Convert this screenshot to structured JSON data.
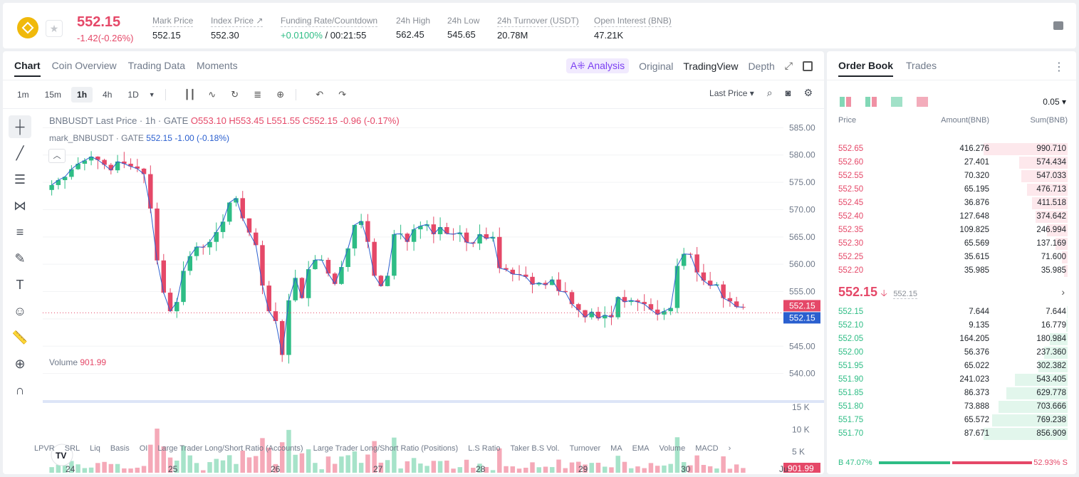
{
  "header": {
    "last_price": "552.15",
    "change": "-1.42(-0.26%)",
    "stats": [
      {
        "label": "Mark Price",
        "value": "552.15"
      },
      {
        "label": "Index Price ↗",
        "value": "552.30"
      },
      {
        "label": "Funding Rate/Countdown",
        "value_green": "+0.0100%",
        "value_rest": " / 00:21:55"
      },
      {
        "label": "24h High",
        "value": "562.45"
      },
      {
        "label": "24h Low",
        "value": "545.65"
      },
      {
        "label": "24h Turnover (USDT)",
        "value": "20.78M"
      },
      {
        "label": "Open Interest (BNB)",
        "value": "47.21K"
      }
    ]
  },
  "chart_tabs": [
    "Chart",
    "Coin Overview",
    "Trading Data",
    "Moments"
  ],
  "view_tabs": {
    "analysis": "A⁜ Analysis",
    "original": "Original",
    "tradingview": "TradingView",
    "depth": "Depth"
  },
  "intervals": [
    "1m",
    "15m",
    "1h",
    "4h",
    "1D"
  ],
  "active_interval": "1h",
  "price_type": "Last Price",
  "legend": {
    "main": "BNBUSDT Last Price · 1h · GATE",
    "o": "O553.10",
    "h": "H553.45",
    "l": "L551.55",
    "c": "C552.15",
    "chg": "-0.96 (-0.17%)",
    "mark_name": "mark_BNBUSDT · GATE",
    "mark_price": "552.15",
    "mark_chg": "-1.00 (-0.18%)",
    "volume_label": "Volume",
    "volume_value": "901.99"
  },
  "price_axis": [
    "585.00",
    "580.00",
    "575.00",
    "570.00",
    "565.00",
    "560.00",
    "555.00",
    "550.00",
    "545.00",
    "540.00"
  ],
  "price_tag_last": "552.15",
  "price_tag_mark": "552.15",
  "volume_axis": [
    "15 K",
    "10 K",
    "5 K"
  ],
  "volume_tag": "901.99",
  "date_axis": [
    "24",
    "25",
    "26",
    "27",
    "28",
    "29",
    "30",
    "Ju"
  ],
  "indicators": [
    "LPVR",
    "SRL",
    "Liq",
    "Basis",
    "OI",
    "Large Trader Long/Short Ratio (Accounts)",
    "Large Trader Long/Short Ratio (Positions)",
    "L.S Ratio",
    "Taker B.S Vol.",
    "Turnover",
    "MA",
    "EMA",
    "Volume",
    "MACD"
  ],
  "chart_data": {
    "type": "candlestick",
    "ylim": [
      538,
      587
    ],
    "volume_ylim": [
      0,
      15000
    ],
    "x_labels": [
      "24",
      "25",
      "26",
      "27",
      "28",
      "29",
      "30"
    ],
    "series": [
      {
        "name": "BNBUSDT Last Price",
        "close_path": [
          574.5,
          575.4,
          576.0,
          577.4,
          578.4,
          579.0,
          579.7,
          579.1,
          578.2,
          577.2,
          578.8,
          578.4,
          577.9,
          577.5,
          576.5,
          570.2,
          560.7,
          554.8,
          551.4,
          553.1,
          558.8,
          561.5,
          563.2,
          563.1,
          564.1,
          565.9,
          567.8,
          571.3,
          572.1,
          568.4,
          565.8,
          563.5,
          556.1,
          551.4,
          549.6,
          543.4,
          553.4,
          557.5,
          553.8,
          559.1,
          560.8,
          560.8,
          558.3,
          556.4,
          559.5,
          562.9,
          567.2,
          567.9,
          564.1,
          557.9,
          556.0,
          557.9,
          565.5,
          565.6,
          564.1,
          566.4,
          567.0,
          567.3,
          565.5,
          566.8,
          565.6,
          565.5,
          565.8,
          564.0,
          563.8,
          565.5,
          564.7,
          565.0,
          559.3,
          559.0,
          558.2,
          558.1,
          557.7,
          556.3,
          556.6,
          556.2,
          557.2,
          555.1,
          554.9,
          552.7,
          551.6,
          550.3,
          551.3,
          550.1,
          550.7,
          550.3,
          554.0,
          553.1,
          553.4,
          553.1,
          552.7,
          551.7,
          550.8,
          551.4,
          552.0,
          559.7,
          561.9,
          561.8,
          558.5,
          557.0,
          556.1,
          556.3,
          553.8,
          553.2,
          552.2,
          552.15
        ]
      }
    ]
  },
  "orderbook": {
    "tabs": [
      "Order Book",
      "Trades"
    ],
    "step": "0.05 ▾",
    "headers": {
      "price": "Price",
      "amount": "Amount(BNB)",
      "sum": "Sum(BNB)"
    },
    "asks": [
      {
        "price": "552.65",
        "amount": "416.276",
        "sum": "990.710",
        "depth": 1.0
      },
      {
        "price": "552.60",
        "amount": "27.401",
        "sum": "574.434",
        "depth": 0.58
      },
      {
        "price": "552.55",
        "amount": "70.320",
        "sum": "547.033",
        "depth": 0.55
      },
      {
        "price": "552.50",
        "amount": "65.195",
        "sum": "476.713",
        "depth": 0.48
      },
      {
        "price": "552.45",
        "amount": "36.876",
        "sum": "411.518",
        "depth": 0.42
      },
      {
        "price": "552.40",
        "amount": "127.648",
        "sum": "374.642",
        "depth": 0.38
      },
      {
        "price": "552.35",
        "amount": "109.825",
        "sum": "246.994",
        "depth": 0.25
      },
      {
        "price": "552.30",
        "amount": "65.569",
        "sum": "137.169",
        "depth": 0.14
      },
      {
        "price": "552.25",
        "amount": "35.615",
        "sum": "71.600",
        "depth": 0.07
      },
      {
        "price": "552.20",
        "amount": "35.985",
        "sum": "35.985",
        "depth": 0.04
      }
    ],
    "last_price": "552.15",
    "mark_price": "552.15",
    "bids": [
      {
        "price": "552.15",
        "amount": "7.644",
        "sum": "7.644",
        "depth": 0.01
      },
      {
        "price": "552.10",
        "amount": "9.135",
        "sum": "16.779",
        "depth": 0.02
      },
      {
        "price": "552.05",
        "amount": "164.205",
        "sum": "180.984",
        "depth": 0.21
      },
      {
        "price": "552.00",
        "amount": "56.376",
        "sum": "237.360",
        "depth": 0.28
      },
      {
        "price": "551.95",
        "amount": "65.022",
        "sum": "302.382",
        "depth": 0.35
      },
      {
        "price": "551.90",
        "amount": "241.023",
        "sum": "543.405",
        "depth": 0.63
      },
      {
        "price": "551.85",
        "amount": "86.373",
        "sum": "629.778",
        "depth": 0.73
      },
      {
        "price": "551.80",
        "amount": "73.888",
        "sum": "703.666",
        "depth": 0.82
      },
      {
        "price": "551.75",
        "amount": "65.572",
        "sum": "769.238",
        "depth": 0.9
      },
      {
        "price": "551.70",
        "amount": "87.671",
        "sum": "856.909",
        "depth": 1.0
      }
    ],
    "buy_ratio": "B 47.07%",
    "sell_ratio": "52.93% S"
  },
  "colors": {
    "up": "#2ebd85",
    "down": "#e54868",
    "mark": "#2a5fcf"
  }
}
